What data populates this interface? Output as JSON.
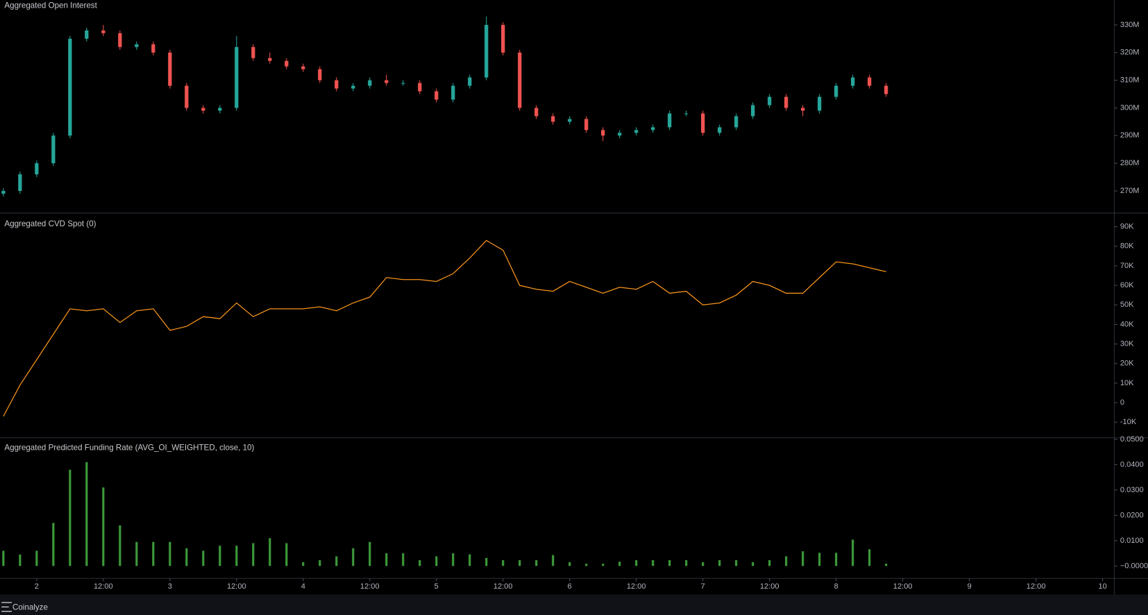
{
  "chart_data": [
    {
      "type": "candlestick",
      "title": "Aggregated Open Interest",
      "x": [
        -6,
        -3,
        0,
        3,
        6,
        9,
        12,
        15,
        18,
        21,
        24,
        27,
        30,
        33,
        36,
        39,
        42,
        45,
        48,
        51,
        54,
        57,
        60,
        63,
        66,
        69,
        72,
        75,
        78,
        81,
        84,
        87,
        90,
        93,
        96,
        99,
        102,
        105,
        108,
        111,
        114,
        117,
        120,
        123,
        126,
        129,
        132,
        135,
        138,
        141,
        144,
        147,
        150,
        153
      ],
      "open": [
        269,
        270,
        276,
        280,
        290,
        325,
        328,
        327,
        322,
        323,
        320,
        308,
        300,
        299,
        300,
        322,
        318,
        317,
        315,
        314,
        310,
        307,
        308,
        310,
        309,
        309,
        306,
        303,
        308,
        311,
        330,
        320,
        300,
        297,
        295,
        296,
        292,
        290,
        291,
        292,
        293,
        298,
        298,
        291,
        293,
        297,
        301,
        304,
        300,
        299,
        304,
        308,
        311,
        308
      ],
      "high": [
        271,
        277,
        281,
        291,
        326,
        329,
        330,
        328,
        324,
        324,
        321,
        309,
        301,
        301,
        326,
        323,
        320,
        318,
        316,
        315,
        311,
        309,
        311,
        312,
        310,
        310,
        307,
        309,
        312,
        333,
        331,
        321,
        301,
        298,
        297,
        297,
        293,
        292,
        293,
        294,
        299,
        299,
        299,
        294,
        298,
        302,
        305,
        305,
        301,
        305,
        309,
        312,
        312,
        309
      ],
      "low": [
        268,
        269,
        275,
        279,
        289,
        324,
        326,
        321,
        321,
        319,
        307,
        299,
        298,
        298,
        299,
        317,
        316,
        314,
        313,
        309,
        306,
        306,
        307,
        308,
        308,
        305,
        302,
        302,
        307,
        310,
        319,
        299,
        296,
        294,
        294,
        291,
        288,
        289,
        290,
        291,
        292,
        297,
        290,
        290,
        292,
        296,
        300,
        299,
        297,
        298,
        303,
        307,
        307,
        304
      ],
      "close": [
        270,
        276,
        280,
        290,
        325,
        328,
        327,
        322,
        323,
        320,
        308,
        300,
        299,
        300,
        322,
        318,
        317,
        315,
        314,
        310,
        307,
        308,
        310,
        309,
        309,
        306,
        303,
        308,
        311,
        330,
        320,
        300,
        297,
        295,
        296,
        292,
        290,
        291,
        292,
        293,
        298,
        298,
        291,
        293,
        297,
        301,
        304,
        300,
        299,
        304,
        308,
        311,
        308,
        305
      ],
      "up_color": "#26a69a",
      "down_color": "#ef5350",
      "xlim": [
        -6.6,
        194.1
      ],
      "ylim": [
        262,
        339
      ],
      "yticks": [
        {
          "value": 270,
          "label": "270M"
        },
        {
          "value": 280,
          "label": "280M"
        },
        {
          "value": 290,
          "label": "290M"
        },
        {
          "value": 300,
          "label": "300M"
        },
        {
          "value": 310,
          "label": "310M"
        },
        {
          "value": 320,
          "label": "320M"
        },
        {
          "value": 330,
          "label": "330M"
        }
      ]
    },
    {
      "type": "line",
      "title": "Aggregated CVD Spot (0)",
      "x": [
        -6,
        -3,
        0,
        3,
        6,
        9,
        12,
        15,
        18,
        21,
        24,
        27,
        30,
        33,
        36,
        39,
        42,
        45,
        48,
        51,
        54,
        57,
        60,
        63,
        66,
        69,
        72,
        75,
        78,
        81,
        84,
        87,
        90,
        93,
        96,
        99,
        102,
        105,
        108,
        111,
        114,
        117,
        120,
        123,
        126,
        129,
        132,
        135,
        138,
        141,
        144,
        147,
        150,
        153
      ],
      "values": [
        -7,
        9,
        22,
        35,
        48,
        47,
        48,
        41,
        47,
        48,
        37,
        39,
        44,
        43,
        51,
        44,
        48,
        48,
        48,
        49,
        47,
        51,
        54,
        64,
        63,
        63,
        62,
        66,
        74,
        83,
        78,
        60,
        58,
        57,
        62,
        59,
        56,
        59,
        58,
        62,
        56,
        57,
        50,
        51,
        55,
        62,
        60,
        56,
        56,
        64,
        72,
        71,
        69,
        67
      ],
      "color": "#f7931a",
      "xlim": [
        -6.6,
        194.1
      ],
      "ylim": [
        -18,
        97
      ],
      "yticks": [
        {
          "value": -10,
          "label": "-10K"
        },
        0,
        {
          "value": 10,
          "label": "10K"
        },
        {
          "value": 20,
          "label": "20K"
        },
        {
          "value": 30,
          "label": "30K"
        },
        {
          "value": 40,
          "label": "40K"
        },
        {
          "value": 50,
          "label": "50K"
        },
        {
          "value": 60,
          "label": "60K"
        },
        {
          "value": 70,
          "label": "70K"
        },
        {
          "value": 80,
          "label": "80K"
        },
        {
          "value": 90,
          "label": "90K"
        }
      ]
    },
    {
      "type": "bar",
      "title": "Aggregated Predicted Funding Rate (AVG_OI_WEIGHTED, close, 10)",
      "x": [
        -6,
        -3,
        0,
        3,
        6,
        9,
        12,
        15,
        18,
        21,
        24,
        27,
        30,
        33,
        36,
        39,
        42,
        45,
        48,
        51,
        54,
        57,
        60,
        63,
        66,
        69,
        72,
        75,
        78,
        81,
        84,
        87,
        90,
        93,
        96,
        99,
        102,
        105,
        108,
        111,
        114,
        117,
        120,
        123,
        126,
        129,
        132,
        135,
        138,
        141,
        144,
        147,
        150,
        153
      ],
      "values": [
        0.006,
        0.0045,
        0.006,
        0.017,
        0.038,
        0.041,
        0.031,
        0.016,
        0.0095,
        0.0095,
        0.0095,
        0.007,
        0.006,
        0.008,
        0.008,
        0.009,
        0.011,
        0.009,
        0.0015,
        0.0023,
        0.0038,
        0.007,
        0.0095,
        0.005,
        0.005,
        0.0023,
        0.0038,
        0.005,
        0.0046,
        0.0032,
        0.0023,
        0.0023,
        0.0023,
        0.0043,
        0.0015,
        0.0009,
        0.0009,
        0.0017,
        0.0023,
        0.0023,
        0.0023,
        0.0023,
        0.0015,
        0.0023,
        0.0023,
        0.0015,
        0.0023,
        0.0038,
        0.0058,
        0.0052,
        0.0052,
        0.0104,
        0.0066,
        0.0009
      ],
      "color": "#3d9a3a",
      "xlim": [
        -6.6,
        194.1
      ],
      "ylim": [
        -0.0049,
        0.0506
      ],
      "yticks": [
        {
          "value": 0,
          "label": "−0.0000"
        },
        {
          "value": 0.01,
          "label": "0.0100"
        },
        {
          "value": 0.02,
          "label": "0.0200"
        },
        {
          "value": 0.03,
          "label": "0.0300"
        },
        {
          "value": 0.04,
          "label": "0.0400"
        },
        {
          "value": 0.05,
          "label": "0.0500"
        }
      ],
      "xticks": [
        {
          "value": 0,
          "label": "2"
        },
        {
          "value": 12,
          "label": "12:00"
        },
        {
          "value": 24,
          "label": "3"
        },
        {
          "value": 36,
          "label": "12:00"
        },
        {
          "value": 48,
          "label": "4"
        },
        {
          "value": 60,
          "label": "12:00"
        },
        {
          "value": 72,
          "label": "5"
        },
        {
          "value": 84,
          "label": "12:00"
        },
        {
          "value": 96,
          "label": "6"
        },
        {
          "value": 108,
          "label": "12:00"
        },
        {
          "value": 120,
          "label": "7"
        },
        {
          "value": 132,
          "label": "12:00"
        },
        {
          "value": 144,
          "label": "8"
        },
        {
          "value": 156,
          "label": "12:00"
        },
        {
          "value": 168,
          "label": "9"
        },
        {
          "value": 180,
          "label": "12:00"
        },
        {
          "value": 192,
          "label": "10"
        }
      ]
    }
  ],
  "footer": {
    "brand": "Coinalyze"
  }
}
